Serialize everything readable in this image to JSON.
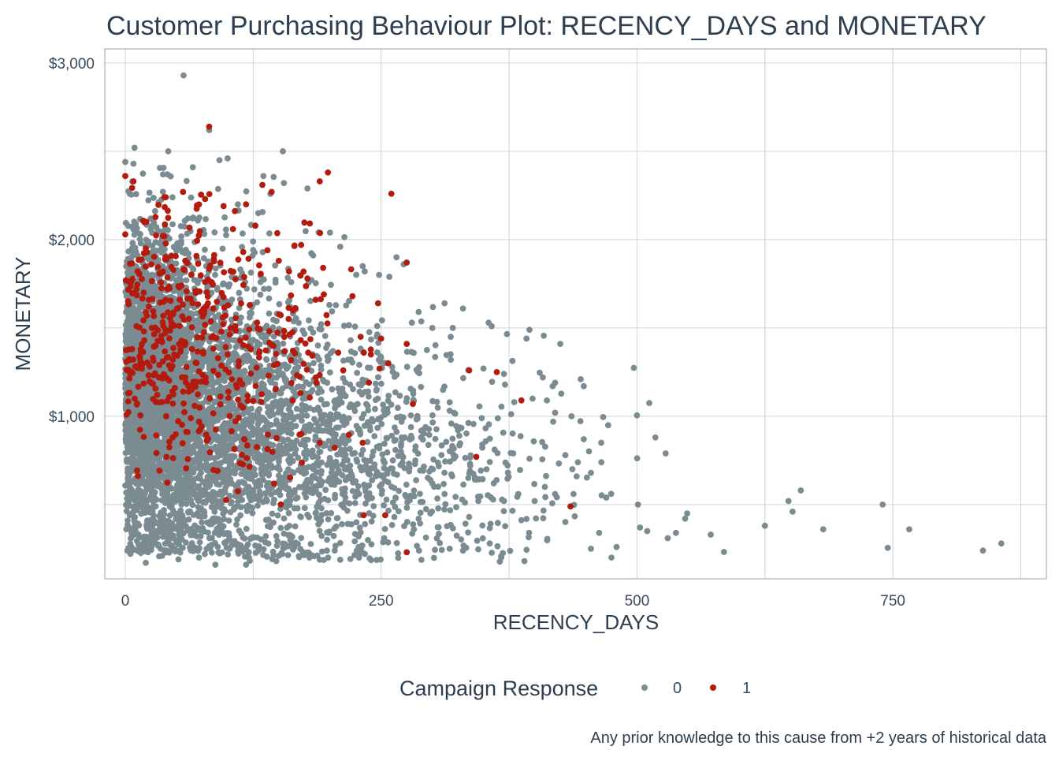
{
  "chart_data": {
    "type": "scatter",
    "title": "Customer Purchasing Behaviour Plot: RECENCY_DAYS and MONETARY",
    "xlabel": "RECENCY_DAYS",
    "ylabel": "MONETARY",
    "xlim": [
      -20,
      900
    ],
    "ylim": [
      80,
      3080
    ],
    "x_ticks": [
      0,
      250,
      500,
      750
    ],
    "x_tick_labels": [
      "0",
      "250",
      "500",
      "750"
    ],
    "y_ticks": [
      1000,
      2000,
      3000
    ],
    "y_tick_labels": [
      "$1,000",
      "$2,000",
      "$3,000"
    ],
    "grid": true,
    "legend": {
      "title": "Campaign Response",
      "placement": "bottom",
      "entries": [
        {
          "label": "0",
          "color": "#7a8b92"
        },
        {
          "label": "1",
          "color": "#b31b0e"
        }
      ]
    },
    "caption": "Any prior knowledge to this cause from +2 years of historical data",
    "series": [
      {
        "name": "0",
        "color": "#7a8b92",
        "points": [
          [
            57,
            2930
          ],
          [
            82,
            2620
          ],
          [
            9,
            2520
          ],
          [
            42,
            2500
          ],
          [
            154,
            2500
          ],
          [
            100,
            2460
          ],
          [
            92,
            2450
          ],
          [
            0,
            2440
          ],
          [
            8,
            2430
          ],
          [
            66,
            2410
          ],
          [
            135,
            2360
          ],
          [
            145,
            2355
          ],
          [
            178,
            2290
          ],
          [
            155,
            2320
          ],
          [
            200,
            2040
          ],
          [
            110,
            2200
          ],
          [
            130,
            2150
          ],
          [
            210,
            1960
          ],
          [
            232,
            1850
          ],
          [
            265,
            1900
          ],
          [
            272,
            1860
          ],
          [
            248,
            1800
          ],
          [
            258,
            1790
          ],
          [
            330,
            1610
          ],
          [
            355,
            1530
          ],
          [
            358,
            1510
          ],
          [
            395,
            1490
          ],
          [
            392,
            1440
          ],
          [
            300,
            1500
          ],
          [
            318,
            1450
          ],
          [
            425,
            1410
          ],
          [
            280,
            1530
          ],
          [
            234,
            1820
          ],
          [
            312,
            1640
          ],
          [
            320,
            1500
          ],
          [
            445,
            1210
          ],
          [
            448,
            1170
          ],
          [
            408,
            1220
          ],
          [
            420,
            1190
          ],
          [
            370,
            1240
          ],
          [
            350,
            1270
          ],
          [
            412,
            1090
          ],
          [
            398,
            1100
          ],
          [
            380,
            1080
          ],
          [
            420,
            1020
          ],
          [
            436,
            1000
          ],
          [
            500,
            1005
          ],
          [
            512,
            1075
          ],
          [
            518,
            880
          ],
          [
            528,
            790
          ],
          [
            465,
            850
          ],
          [
            448,
            870
          ],
          [
            455,
            680
          ],
          [
            470,
            540
          ],
          [
            501,
            500
          ],
          [
            503,
            370
          ],
          [
            510,
            350
          ],
          [
            538,
            340
          ],
          [
            547,
            420
          ],
          [
            549,
            450
          ],
          [
            572,
            330
          ],
          [
            585,
            232
          ],
          [
            625,
            380
          ],
          [
            648,
            520
          ],
          [
            660,
            580
          ],
          [
            652,
            460
          ],
          [
            682,
            360
          ],
          [
            740,
            500
          ],
          [
            745,
            255
          ],
          [
            766,
            360
          ],
          [
            838,
            240
          ],
          [
            856,
            280
          ],
          [
            530,
            310
          ],
          [
            480,
            260
          ],
          [
            475,
            200
          ],
          [
            455,
            250
          ],
          [
            463,
            340
          ],
          [
            430,
            780
          ],
          [
            441,
            660
          ],
          [
            438,
            560
          ],
          [
            420,
            560
          ],
          [
            410,
            600
          ],
          [
            400,
            520
          ],
          [
            390,
            180
          ],
          [
            384,
            560
          ],
          [
            370,
            520
          ],
          [
            360,
            620
          ],
          [
            353,
            700
          ],
          [
            345,
            520
          ],
          [
            336,
            430
          ],
          [
            330,
            240
          ],
          [
            312,
            560
          ],
          [
            300,
            620
          ],
          [
            298,
            450
          ],
          [
            287,
            240
          ],
          [
            282,
            360
          ],
          [
            264,
            540
          ],
          [
            253,
            310
          ],
          [
            228,
            260
          ],
          [
            197,
            240
          ],
          [
            180,
            200
          ],
          [
            150,
            210
          ],
          [
            118,
            160
          ],
          [
            88,
            160
          ],
          [
            72,
            200
          ],
          [
            52,
            190
          ],
          [
            36,
            210
          ],
          [
            20,
            170
          ],
          [
            2,
            240
          ]
        ],
        "clusters": [
          {
            "x_mean": 28,
            "x_sd": 26,
            "y_mean": 1150,
            "y_sd": 430,
            "count": 2400,
            "x_min": 0,
            "y_min": 220,
            "y_max": 2440
          },
          {
            "x_mean": 85,
            "x_sd": 45,
            "y_mean": 1050,
            "y_sd": 420,
            "count": 1600,
            "x_min": 0,
            "y_min": 220,
            "y_max": 2300
          },
          {
            "x_mean": 170,
            "x_sd": 70,
            "y_mean": 850,
            "y_sd": 360,
            "count": 1100,
            "x_min": 0,
            "y_min": 180,
            "y_max": 2100
          },
          {
            "x_mean": 300,
            "x_sd": 85,
            "y_mean": 650,
            "y_sd": 260,
            "count": 320,
            "x_min": 120,
            "y_min": 170,
            "y_max": 1600
          }
        ]
      },
      {
        "name": "1",
        "color": "#b31b0e",
        "points": [
          [
            82,
            2640
          ],
          [
            0,
            2360
          ],
          [
            8,
            2330
          ],
          [
            198,
            2380
          ],
          [
            190,
            2330
          ],
          [
            260,
            2260
          ],
          [
            134,
            2310
          ],
          [
            143,
            2270
          ],
          [
            78,
            2230
          ],
          [
            96,
            2190
          ],
          [
            118,
            2200
          ],
          [
            275,
            1870
          ],
          [
            222,
            1680
          ],
          [
            194,
            1690
          ],
          [
            178,
            1780
          ],
          [
            186,
            1660
          ],
          [
            247,
            1640
          ],
          [
            250,
            1440
          ],
          [
            275,
            1410
          ],
          [
            230,
            1450
          ],
          [
            208,
            1360
          ],
          [
            213,
            1260
          ],
          [
            240,
            1350
          ],
          [
            257,
            1300
          ],
          [
            336,
            1260
          ],
          [
            363,
            1250
          ],
          [
            387,
            1090
          ],
          [
            281,
            1070
          ],
          [
            232,
            850
          ],
          [
            190,
            850
          ],
          [
            172,
            900
          ],
          [
            343,
            770
          ],
          [
            435,
            490
          ],
          [
            233,
            440
          ],
          [
            254,
            440
          ],
          [
            275,
            230
          ],
          [
            160,
            1820
          ],
          [
            150,
            1880
          ],
          [
            100,
            1350
          ],
          [
            115,
            1050
          ],
          [
            65,
            1150
          ],
          [
            40,
            1000
          ],
          [
            0,
            2030
          ],
          [
            12,
            1820
          ],
          [
            18,
            1700
          ],
          [
            26,
            1500
          ],
          [
            36,
            1420
          ],
          [
            48,
            1350
          ]
        ],
        "clusters": [
          {
            "x_mean": 45,
            "x_sd": 40,
            "y_mean": 1450,
            "y_sd": 380,
            "count": 330,
            "x_min": 0,
            "y_min": 600,
            "y_max": 2300
          },
          {
            "x_mean": 130,
            "x_sd": 50,
            "y_mean": 1300,
            "y_sd": 350,
            "count": 150,
            "x_min": 0,
            "y_min": 500,
            "y_max": 2200
          }
        ]
      }
    ]
  }
}
